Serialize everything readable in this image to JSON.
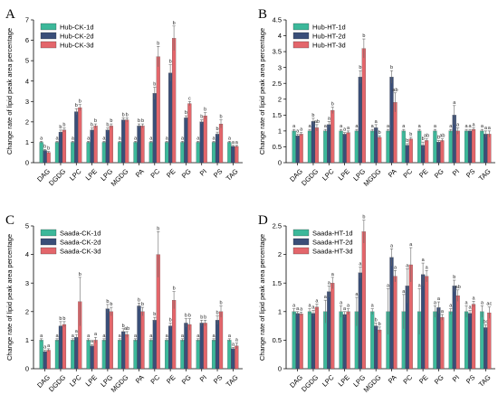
{
  "colors": {
    "d1": "#3cb89a",
    "d2": "#3a4e78",
    "d3": "#e3666b",
    "err": "#666666",
    "axis": "#000000"
  },
  "chart_data": [
    {
      "type": "bar",
      "panel": "A",
      "ylabel": "Change rate of lipid peak area percentage",
      "ylim": [
        0,
        7
      ],
      "yticks": [
        0,
        1,
        2,
        3,
        4,
        5,
        6,
        7
      ],
      "legend": "top-left",
      "categories": [
        "DAG",
        "DGDG",
        "LPC",
        "LPE",
        "LPG",
        "MGDG",
        "PA",
        "PC",
        "PE",
        "PG",
        "PI",
        "PS",
        "TAG"
      ],
      "series": [
        {
          "name": "Hub-CK-1d",
          "values": [
            1,
            1,
            1,
            1,
            1,
            1,
            1,
            1,
            1,
            1,
            1,
            1,
            1
          ],
          "errors": [
            0.05,
            0.05,
            0.05,
            0.05,
            0.05,
            0.05,
            0.05,
            0.05,
            0.05,
            0.05,
            0.05,
            0.05,
            0.05
          ],
          "labels": [
            "a",
            "a",
            "a",
            "a",
            "a",
            "a",
            "a",
            "a",
            "a",
            "a",
            "a",
            "a",
            "a"
          ]
        },
        {
          "name": "Hub-CK-2d",
          "values": [
            0.6,
            1.5,
            2.5,
            1.6,
            1.6,
            2.1,
            1.8,
            3.4,
            4.4,
            2.2,
            2.0,
            1.4,
            0.8
          ],
          "errors": [
            0.05,
            0.1,
            0.15,
            0.1,
            0.1,
            0.1,
            0.1,
            0.3,
            0.4,
            0.1,
            0.1,
            0.1,
            0.05
          ],
          "labels": [
            "b",
            "b",
            "b",
            "b",
            "b",
            "b",
            "b",
            "b",
            "b",
            "b",
            "b",
            "b",
            "a"
          ]
        },
        {
          "name": "Hub-CK-3d",
          "values": [
            0.5,
            1.6,
            2.7,
            1.8,
            1.8,
            2.1,
            1.8,
            5.2,
            6.1,
            2.9,
            2.3,
            1.9,
            0.8
          ],
          "errors": [
            0.05,
            0.1,
            0.15,
            0.1,
            0.1,
            0.1,
            0.1,
            0.5,
            0.6,
            0.1,
            0.15,
            0.2,
            0.05
          ],
          "labels": [
            "b",
            "b",
            "b",
            "b",
            "b",
            "b",
            "b",
            "b",
            "b",
            "c",
            "b",
            "b",
            "a"
          ]
        }
      ]
    },
    {
      "type": "bar",
      "panel": "B",
      "ylabel": "Change rate of lipid peak area percentage",
      "ylim": [
        0,
        4.5
      ],
      "yticks": [
        0,
        0.5,
        1,
        1.5,
        2,
        2.5,
        3,
        3.5,
        4,
        4.5
      ],
      "legend": "top-left",
      "categories": [
        "DAG",
        "DGDG",
        "LPC",
        "LPE",
        "LPG",
        "MGDG",
        "PA",
        "PC",
        "PE",
        "PG",
        "PI",
        "PS",
        "TAG"
      ],
      "series": [
        {
          "name": "Hub-HT-1d",
          "values": [
            1,
            1,
            1,
            1,
            1,
            1,
            1,
            1,
            1,
            1,
            1,
            1,
            1
          ],
          "errors": [
            0.05,
            0.05,
            0.05,
            0.05,
            0.05,
            0.05,
            0.05,
            0.05,
            0.05,
            0.05,
            0.05,
            0.05,
            0.05
          ],
          "labels": [
            "a",
            "a",
            "a",
            "a",
            "a",
            "a",
            "a",
            "a",
            "a",
            "a",
            "a",
            "a",
            "a"
          ]
        },
        {
          "name": "Hub-HT-2d",
          "values": [
            0.85,
            1.3,
            1.2,
            0.9,
            2.7,
            1.1,
            2.7,
            0.55,
            0.55,
            0.65,
            1.5,
            1.0,
            0.9
          ],
          "errors": [
            0.05,
            0.1,
            0.1,
            0.05,
            0.2,
            0.1,
            0.2,
            0.05,
            0.1,
            0.05,
            0.3,
            0.05,
            0.1
          ],
          "labels": [
            "a",
            "b",
            "a",
            "a",
            "b",
            "a",
            "b",
            "b",
            "b",
            "b",
            "a",
            "a",
            "a"
          ]
        },
        {
          "name": "Hub-HT-3d",
          "values": [
            0.9,
            1.1,
            1.65,
            0.95,
            3.6,
            0.8,
            1.9,
            0.75,
            0.7,
            0.7,
            1.0,
            1.05,
            0.9
          ],
          "errors": [
            0.05,
            0.1,
            0.1,
            0.05,
            0.3,
            0.05,
            0.3,
            0.05,
            0.05,
            0.05,
            0.1,
            0.05,
            0.1
          ],
          "labels": [
            "a",
            "ab",
            "b",
            "a",
            "b",
            "b",
            "ab",
            "b",
            "ab",
            "ab",
            "a",
            "a",
            "a"
          ]
        }
      ]
    },
    {
      "type": "bar",
      "panel": "C",
      "ylabel": "Change rate of lipid peak area percentage",
      "ylim": [
        0,
        5
      ],
      "yticks": [
        0,
        1,
        2,
        3,
        4,
        5
      ],
      "legend": "top-left",
      "categories": [
        "DAG",
        "DGDG",
        "LPC",
        "LPE",
        "LPG",
        "MGDG",
        "PA",
        "PC",
        "PE",
        "PG",
        "PI",
        "PS",
        "TAG"
      ],
      "series": [
        {
          "name": "Saada-CK-1d",
          "values": [
            1,
            1,
            1,
            1,
            1,
            1,
            1,
            1,
            1,
            1,
            1,
            1,
            1
          ],
          "errors": [
            0.05,
            0.05,
            0.05,
            0.05,
            0.05,
            0.05,
            0.05,
            0.05,
            0.05,
            0.05,
            0.05,
            0.05,
            0.05
          ],
          "labels": [
            "a",
            "a",
            "a",
            "a",
            "a",
            "a",
            "a",
            "a",
            "a",
            "a",
            "a",
            "a",
            "a"
          ]
        },
        {
          "name": "Saada-CK-2d",
          "values": [
            0.6,
            1.5,
            1.1,
            0.8,
            2.1,
            1.3,
            2.2,
            1.7,
            1.5,
            1.6,
            1.6,
            1.7,
            0.7
          ],
          "errors": [
            0.05,
            0.15,
            0.1,
            0.05,
            0.15,
            0.1,
            0.1,
            0.1,
            0.1,
            0.15,
            0.1,
            0.15,
            0.05
          ],
          "labels": [
            "a",
            "b",
            "a",
            "a",
            "b",
            "b",
            "b",
            "b",
            "b",
            "b",
            "b",
            "b",
            "a"
          ]
        },
        {
          "name": "Saada-CK-3d",
          "values": [
            0.65,
            1.55,
            2.35,
            1.0,
            2.0,
            1.2,
            2.0,
            4.0,
            2.4,
            1.55,
            1.6,
            2.0,
            0.8
          ],
          "errors": [
            0.05,
            0.1,
            0.85,
            0.1,
            0.15,
            0.1,
            0.15,
            0.8,
            0.3,
            0.2,
            0.1,
            0.2,
            0.1
          ],
          "labels": [
            "a",
            "b",
            "b",
            "a",
            "b",
            "ab",
            "b",
            "b",
            "b",
            "b",
            "b",
            "b",
            "a"
          ]
        }
      ]
    },
    {
      "type": "bar",
      "panel": "D",
      "ylabel": "Change rate of lipid peak area percentage",
      "ylim": [
        0,
        2.5
      ],
      "yticks": [
        0,
        0.5,
        1,
        1.5,
        2,
        2.5
      ],
      "legend": "top-left",
      "categories": [
        "DAG",
        "DGDG",
        "LPC",
        "LPE",
        "LPG",
        "MGDG",
        "PA",
        "PC",
        "PE",
        "PG",
        "PI",
        "PS",
        "TAG"
      ],
      "series": [
        {
          "name": "Saada-HT-1d",
          "values": [
            1,
            1,
            1,
            1,
            1,
            1,
            1,
            1,
            1,
            1,
            1,
            1,
            1
          ],
          "errors": [
            0.05,
            0.05,
            0.2,
            0.1,
            0.25,
            0.05,
            0.4,
            0.3,
            0.4,
            0.1,
            0.05,
            0.1,
            0.1
          ],
          "labels": [
            "a",
            "a",
            "a",
            "a",
            "a",
            "a",
            "a",
            "a",
            "a",
            "a",
            "a",
            "a",
            "a"
          ]
        },
        {
          "name": "Saada-HT-2d",
          "values": [
            0.97,
            0.97,
            1.35,
            0.95,
            1.68,
            0.75,
            1.95,
            1.45,
            1.65,
            1.07,
            1.45,
            0.97,
            0.72
          ],
          "errors": [
            0.03,
            0.05,
            0.1,
            0.05,
            0.1,
            0.05,
            0.15,
            0.3,
            0.2,
            0.1,
            0.1,
            0.05,
            0.05
          ],
          "labels": [
            "a",
            "a",
            "a",
            "a",
            "a",
            "b",
            "a",
            "a",
            "a",
            "a",
            "b",
            "a",
            "bc"
          ]
        },
        {
          "name": "Saada-HT-3d",
          "values": [
            0.96,
            1.08,
            1.5,
            1.0,
            2.4,
            0.68,
            1.62,
            1.82,
            1.62,
            0.9,
            1.28,
            1.13,
            0.98
          ],
          "errors": [
            0.03,
            0.05,
            0.1,
            0.05,
            0.2,
            0.05,
            0.1,
            0.3,
            0.1,
            0.05,
            0.1,
            0.05,
            0.1
          ],
          "labels": [
            "a",
            "a",
            "a",
            "a",
            "b",
            "b",
            "a",
            "a",
            "a",
            "a",
            "ab",
            "a",
            "ac"
          ]
        }
      ]
    }
  ]
}
